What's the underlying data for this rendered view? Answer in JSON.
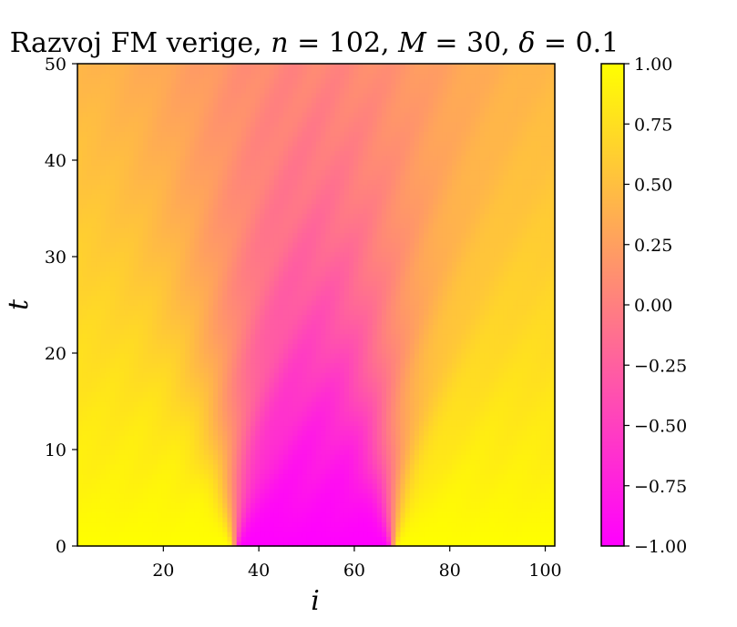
{
  "chart_data": {
    "type": "heatmap",
    "title": "Razvoj FM verige, n = 102, M = 30, δ = 0.1",
    "title_parts": {
      "prefix": "Razvoj FM verige, ",
      "n_symbol": "n",
      "n_value": " = 102, ",
      "m_symbol": "M",
      "m_value": " = 30, ",
      "d_symbol": "δ",
      "d_value": " = 0.1"
    },
    "xlabel": "i",
    "ylabel": "t",
    "xlim": [
      2,
      102
    ],
    "ylim": [
      0,
      50
    ],
    "x_ticks": [
      20,
      40,
      60,
      80,
      100
    ],
    "y_ticks": [
      0,
      10,
      20,
      30,
      40,
      50
    ],
    "colorbar": {
      "range": [
        -1.0,
        1.0
      ],
      "ticks": [
        1.0,
        0.75,
        0.5,
        0.25,
        0.0,
        -0.25,
        -0.5,
        -0.75,
        -1.0
      ],
      "tick_labels": [
        "1.00",
        "0.75",
        "0.50",
        "0.25",
        "0.00",
        "−0.25",
        "−0.50",
        "−0.75",
        "−1.00"
      ],
      "colormap": "spring",
      "color_min": "#ff00ff",
      "color_max": "#ffff00"
    },
    "domain": {
      "flipped_start": 35,
      "flipped_end": 68,
      "lattice_size": 102,
      "t_max": 50
    },
    "grid": false
  }
}
